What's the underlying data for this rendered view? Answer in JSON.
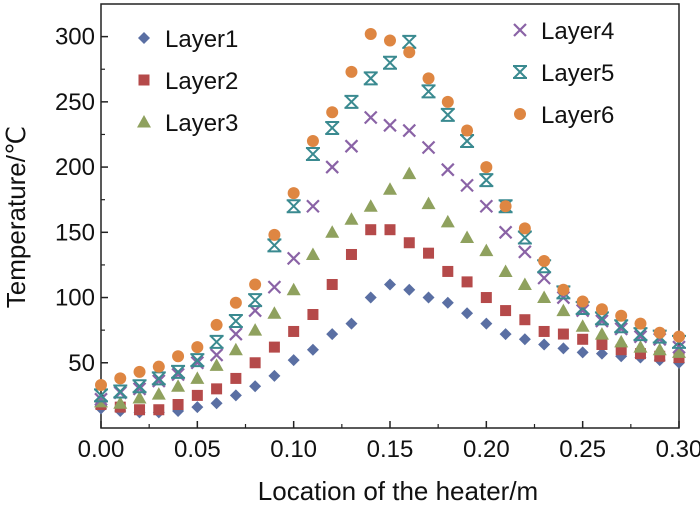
{
  "chart_data": {
    "type": "scatter",
    "title": "",
    "xlabel": "Location of the heater/m",
    "ylabel": "Temperature/℃",
    "xlim": [
      0,
      0.3
    ],
    "ylim": [
      0,
      325
    ],
    "xticks": [
      "0.00",
      "0.05",
      "0.10",
      "0.15",
      "0.20",
      "0.25",
      "0.30"
    ],
    "yticks": [
      "50",
      "100",
      "150",
      "200",
      "250",
      "300"
    ],
    "grid": false,
    "legend_position": "top",
    "x": [
      0,
      0.01,
      0.02,
      0.03,
      0.04,
      0.05,
      0.06,
      0.07,
      0.08,
      0.09,
      0.1,
      0.11,
      0.12,
      0.13,
      0.14,
      0.15,
      0.16,
      0.17,
      0.18,
      0.19,
      0.2,
      0.21,
      0.22,
      0.23,
      0.24,
      0.25,
      0.26,
      0.27,
      0.28,
      0.29,
      0.3
    ],
    "series": [
      {
        "name": "Layer1",
        "marker": "diamond",
        "color": "#5a6fa3",
        "values": [
          15,
          13,
          12,
          12,
          13,
          16,
          19,
          25,
          32,
          40,
          52,
          60,
          72,
          80,
          100,
          110,
          106,
          100,
          96,
          88,
          80,
          72,
          68,
          64,
          61,
          58,
          57,
          55,
          54,
          52,
          50
        ]
      },
      {
        "name": "Layer2",
        "marker": "square",
        "color": "#b54a4a",
        "values": [
          18,
          16,
          14,
          14,
          18,
          25,
          30,
          38,
          50,
          62,
          74,
          87,
          110,
          133,
          152,
          152,
          142,
          134,
          120,
          112,
          100,
          90,
          83,
          74,
          72,
          68,
          64,
          60,
          57,
          55,
          54
        ]
      },
      {
        "name": "Layer3",
        "marker": "triangle",
        "color": "#8fa15e",
        "values": [
          20,
          19,
          23,
          26,
          32,
          38,
          48,
          60,
          75,
          88,
          106,
          133,
          150,
          160,
          170,
          183,
          195,
          172,
          158,
          146,
          136,
          120,
          110,
          100,
          90,
          78,
          72,
          66,
          62,
          60,
          58
        ]
      },
      {
        "name": "Layer4",
        "marker": "x",
        "color": "#8a63a6",
        "values": [
          22,
          27,
          30,
          36,
          41,
          50,
          56,
          72,
          90,
          108,
          130,
          170,
          200,
          216,
          238,
          232,
          228,
          215,
          198,
          186,
          170,
          150,
          135,
          115,
          100,
          90,
          82,
          76,
          70,
          68,
          62
        ]
      },
      {
        "name": "Layer5",
        "marker": "asterisk",
        "color": "#3a8a90",
        "values": [
          25,
          28,
          32,
          38,
          43,
          52,
          66,
          82,
          98,
          140,
          170,
          210,
          230,
          250,
          268,
          280,
          296,
          258,
          240,
          220,
          190,
          170,
          146,
          124,
          104,
          92,
          84,
          78,
          72,
          70,
          66
        ]
      },
      {
        "name": "Layer6",
        "marker": "circle",
        "color": "#de8642",
        "values": [
          33,
          38,
          43,
          47,
          55,
          62,
          79,
          96,
          110,
          148,
          180,
          220,
          242,
          273,
          302,
          297,
          288,
          268,
          250,
          228,
          200,
          170,
          153,
          128,
          106,
          97,
          91,
          86,
          80,
          73,
          70
        ]
      }
    ]
  }
}
